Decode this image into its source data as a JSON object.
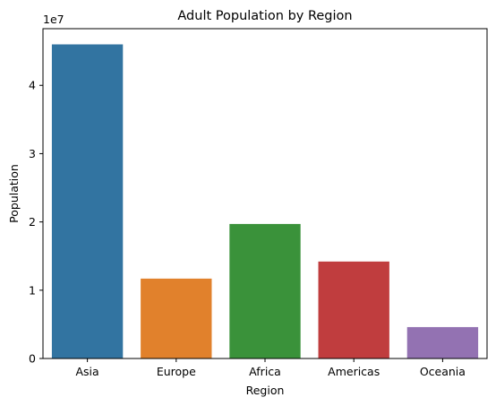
{
  "chart_data": {
    "type": "bar",
    "title": "Adult Population by Region",
    "xlabel": "Region",
    "ylabel": "Population",
    "y_offset_label": "1e7",
    "y_scale": 10000000,
    "categories": [
      "Asia",
      "Europe",
      "Africa",
      "Americas",
      "Oceania"
    ],
    "values": [
      46000000,
      11700000,
      19700000,
      14200000,
      4600000
    ],
    "colors": [
      "#3274a1",
      "#e1812c",
      "#3a923a",
      "#c03d3e",
      "#9372b2"
    ],
    "ylim": [
      0,
      48300000
    ],
    "yticks": [
      0,
      10000000,
      20000000,
      30000000,
      40000000
    ],
    "ytick_labels": [
      "0",
      "1",
      "2",
      "3",
      "4"
    ],
    "grid": false,
    "legend": "none"
  }
}
